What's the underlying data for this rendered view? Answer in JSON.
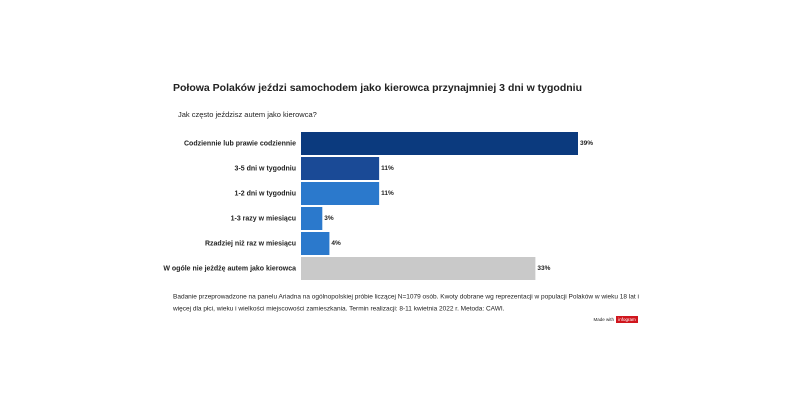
{
  "chart_data": {
    "type": "bar",
    "orientation": "horizontal",
    "title": "Połowa Polaków jeździ samochodem jako kierowca przynajmniej 3 dni w tygodniu",
    "subtitle": "Jak często jeździsz autem jako kierowca?",
    "categories": [
      "Codziennie lub prawie codziennie",
      "3-5 dni w tygodniu",
      "1-2 dni w tygodniu",
      "1-3 razy w miesiącu",
      "Rzadziej niż raz w miesiącu",
      "W ogóle nie jeżdżę autem jako kierowca"
    ],
    "values": [
      39,
      11,
      11,
      3,
      4,
      33
    ],
    "value_labels": [
      "39%",
      "11%",
      "11%",
      "3%",
      "4%",
      "33%"
    ],
    "colors": [
      "#0b3a7e",
      "#1a4a96",
      "#2b79cc",
      "#2b79cc",
      "#2b79cc",
      "#c9c9c9"
    ],
    "footnote": [
      "Badanie przeprowadzone na panelu Ariadna na ogólnopolskiej próbie liczącej N=1079 osób. Kwoty dobrane wg reprezentacji w populacji Polaków w wieku 18 lat i",
      "więcej dla płci, wieku i wielkości miejscowości zamieszkania. Termin realizacji:  8-11 kwietnia 2022 r. Metoda: CAWI."
    ],
    "branding": {
      "made_with": "Made with",
      "logo": "infogram"
    }
  }
}
